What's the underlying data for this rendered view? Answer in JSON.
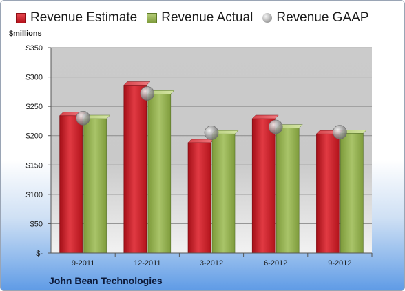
{
  "chart_data": {
    "type": "bar",
    "categories": [
      "9-2011",
      "12-2011",
      "3-2012",
      "6-2012",
      "9-2012"
    ],
    "series": [
      {
        "name": "Revenue Estimate",
        "values": [
          234,
          286,
          188,
          229,
          203
        ],
        "color": "#c8242c"
      },
      {
        "name": "Revenue Actual",
        "values": [
          229,
          271,
          203,
          213,
          204
        ],
        "color": "#98b557"
      },
      {
        "name": "Revenue GAAP",
        "values": [
          230,
          272,
          205,
          215,
          206
        ],
        "color": "#a8a8a8",
        "marker": "circle"
      }
    ],
    "ylabel": "$millions",
    "ylim": [
      0,
      350
    ],
    "yticks": [
      0,
      50,
      100,
      150,
      200,
      250,
      300,
      350
    ],
    "ytick_labels": [
      "$-",
      "$50",
      "$100",
      "$150",
      "$200",
      "$250",
      "$300",
      "$350"
    ],
    "grid": true,
    "legend_position": "top",
    "company": "John Bean Technologies"
  }
}
